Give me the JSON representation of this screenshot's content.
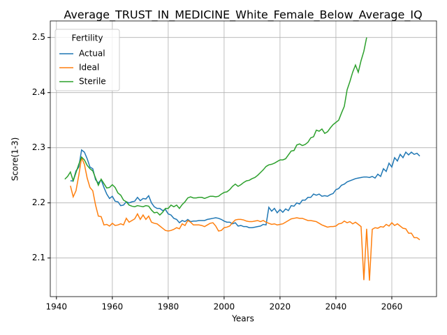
{
  "chart_data": {
    "type": "line",
    "title": "Average_TRUST_IN_MEDICINE_White_Female_Below_Average_IQ",
    "xlabel": "Years",
    "ylabel": "Score(1-3)",
    "legend_title": "Fertility",
    "legend": "upper left",
    "grid": true,
    "xlim": [
      1937.8,
      2076
    ],
    "ylim": [
      2.03,
      2.53
    ],
    "xticks": [
      1940,
      1960,
      1980,
      2000,
      2020,
      2040,
      2060
    ],
    "yticks": [
      2.1,
      2.2,
      2.3,
      2.4,
      2.5
    ],
    "x": [
      1943,
      1944,
      1945,
      1946,
      1947,
      1948,
      1949,
      1950,
      1951,
      1952,
      1953,
      1954,
      1955,
      1956,
      1957,
      1958,
      1959,
      1960,
      1961,
      1962,
      1963,
      1964,
      1965,
      1966,
      1967,
      1968,
      1969,
      1970,
      1971,
      1972,
      1973,
      1974,
      1975,
      1976,
      1977,
      1978,
      1979,
      1980,
      1981,
      1982,
      1983,
      1984,
      1985,
      1986,
      1987,
      1988,
      1989,
      1990,
      1991,
      1992,
      1993,
      1994,
      1995,
      1996,
      1997,
      1998,
      1999,
      2000,
      2001,
      2002,
      2003,
      2004,
      2005,
      2006,
      2007,
      2008,
      2009,
      2010,
      2011,
      2012,
      2013,
      2014,
      2015,
      2016,
      2017,
      2018,
      2019,
      2020,
      2021,
      2022,
      2023,
      2024,
      2025,
      2026,
      2027,
      2028,
      2029,
      2030,
      2031,
      2032,
      2033,
      2034,
      2035,
      2036,
      2037,
      2038,
      2039,
      2040,
      2041,
      2042,
      2043,
      2044,
      2045,
      2046,
      2047,
      2048,
      2049,
      2050,
      2051,
      2052,
      2053,
      2054,
      2055,
      2056,
      2057,
      2058,
      2059,
      2060,
      2061,
      2062,
      2063,
      2064,
      2065,
      2066,
      2067,
      2068,
      2069,
      2070
    ],
    "series": [
      {
        "name": "Actual",
        "color": "#1f77b4",
        "values": [
          null,
          null,
          2.24,
          2.24,
          2.258,
          2.265,
          2.296,
          2.292,
          2.28,
          2.265,
          2.262,
          2.242,
          2.236,
          2.242,
          2.228,
          2.216,
          2.208,
          2.212,
          2.203,
          2.202,
          2.195,
          2.196,
          2.202,
          2.2,
          2.202,
          2.203,
          2.21,
          2.204,
          2.208,
          2.207,
          2.213,
          2.2,
          2.193,
          2.19,
          2.19,
          2.186,
          2.188,
          2.18,
          2.178,
          2.172,
          2.17,
          2.164,
          2.168,
          2.166,
          2.17,
          2.166,
          2.167,
          2.167,
          2.168,
          2.168,
          2.168,
          2.17,
          2.171,
          2.172,
          2.173,
          2.172,
          2.17,
          2.167,
          2.165,
          2.165,
          2.162,
          2.164,
          2.158,
          2.159,
          2.157,
          2.157,
          2.155,
          2.155,
          2.156,
          2.157,
          2.158,
          2.161,
          2.16,
          2.192,
          2.185,
          2.19,
          2.182,
          2.188,
          2.183,
          2.189,
          2.186,
          2.195,
          2.194,
          2.2,
          2.198,
          2.205,
          2.205,
          2.21,
          2.21,
          2.216,
          2.214,
          2.216,
          2.212,
          2.213,
          2.212,
          2.215,
          2.217,
          2.224,
          2.226,
          2.232,
          2.234,
          2.238,
          2.24,
          2.242,
          2.244,
          2.245,
          2.246,
          2.247,
          2.247,
          2.246,
          2.248,
          2.245,
          2.252,
          2.248,
          2.262,
          2.257,
          2.272,
          2.265,
          2.282,
          2.276,
          2.288,
          2.282,
          2.292,
          2.287,
          2.292,
          2.288,
          2.29,
          2.285
        ]
      },
      {
        "name": "Ideal",
        "color": "#ff7f0e",
        "values": [
          null,
          null,
          2.231,
          2.211,
          2.222,
          2.25,
          2.282,
          2.27,
          2.245,
          2.228,
          2.222,
          2.196,
          2.176,
          2.175,
          2.16,
          2.161,
          2.158,
          2.163,
          2.159,
          2.16,
          2.162,
          2.16,
          2.172,
          2.165,
          2.168,
          2.171,
          2.18,
          2.17,
          2.178,
          2.17,
          2.176,
          2.165,
          2.163,
          2.162,
          2.158,
          2.154,
          2.15,
          2.149,
          2.15,
          2.152,
          2.155,
          2.153,
          2.162,
          2.159,
          2.168,
          2.165,
          2.16,
          2.16,
          2.16,
          2.159,
          2.157,
          2.16,
          2.163,
          2.164,
          2.158,
          2.149,
          2.15,
          2.155,
          2.156,
          2.158,
          2.164,
          2.169,
          2.17,
          2.17,
          2.169,
          2.167,
          2.166,
          2.166,
          2.167,
          2.168,
          2.166,
          2.168,
          2.165,
          2.163,
          2.161,
          2.162,
          2.16,
          2.161,
          2.162,
          2.165,
          2.168,
          2.171,
          2.172,
          2.173,
          2.172,
          2.172,
          2.17,
          2.168,
          2.168,
          2.167,
          2.166,
          2.163,
          2.16,
          2.158,
          2.156,
          2.157,
          2.157,
          2.158,
          2.162,
          2.163,
          2.167,
          2.164,
          2.166,
          2.162,
          2.165,
          2.161,
          2.157,
          2.06,
          2.153,
          2.059,
          2.152,
          2.155,
          2.154,
          2.157,
          2.156,
          2.161,
          2.158,
          2.164,
          2.159,
          2.162,
          2.158,
          2.154,
          2.153,
          2.145,
          2.145,
          2.137,
          2.137,
          2.133
        ]
      },
      {
        "name": "Sterile",
        "color": "#2ca02c",
        "values": [
          2.243,
          2.248,
          2.256,
          2.24,
          2.255,
          2.27,
          2.283,
          2.278,
          2.268,
          2.262,
          2.258,
          2.245,
          2.232,
          2.243,
          2.235,
          2.227,
          2.228,
          2.233,
          2.228,
          2.218,
          2.214,
          2.205,
          2.202,
          2.196,
          2.194,
          2.193,
          2.195,
          2.194,
          2.193,
          2.195,
          2.194,
          2.187,
          2.182,
          2.183,
          2.178,
          2.183,
          2.19,
          2.19,
          2.196,
          2.193,
          2.196,
          2.19,
          2.197,
          2.202,
          2.209,
          2.211,
          2.209,
          2.209,
          2.21,
          2.21,
          2.208,
          2.21,
          2.212,
          2.212,
          2.211,
          2.212,
          2.216,
          2.219,
          2.22,
          2.224,
          2.23,
          2.234,
          2.23,
          2.233,
          2.237,
          2.24,
          2.241,
          2.244,
          2.246,
          2.25,
          2.255,
          2.26,
          2.266,
          2.269,
          2.27,
          2.272,
          2.275,
          2.278,
          2.278,
          2.28,
          2.287,
          2.294,
          2.295,
          2.305,
          2.307,
          2.304,
          2.306,
          2.31,
          2.318,
          2.32,
          2.332,
          2.33,
          2.334,
          2.326,
          2.329,
          2.336,
          2.342,
          2.346,
          2.35,
          2.363,
          2.375,
          2.405,
          2.42,
          2.437,
          2.45,
          2.437,
          2.458,
          2.475,
          2.5,
          null,
          null,
          null,
          null,
          null,
          null,
          null,
          null,
          null,
          null,
          null,
          null,
          null,
          null,
          null,
          null,
          null,
          null,
          null
        ]
      }
    ]
  }
}
